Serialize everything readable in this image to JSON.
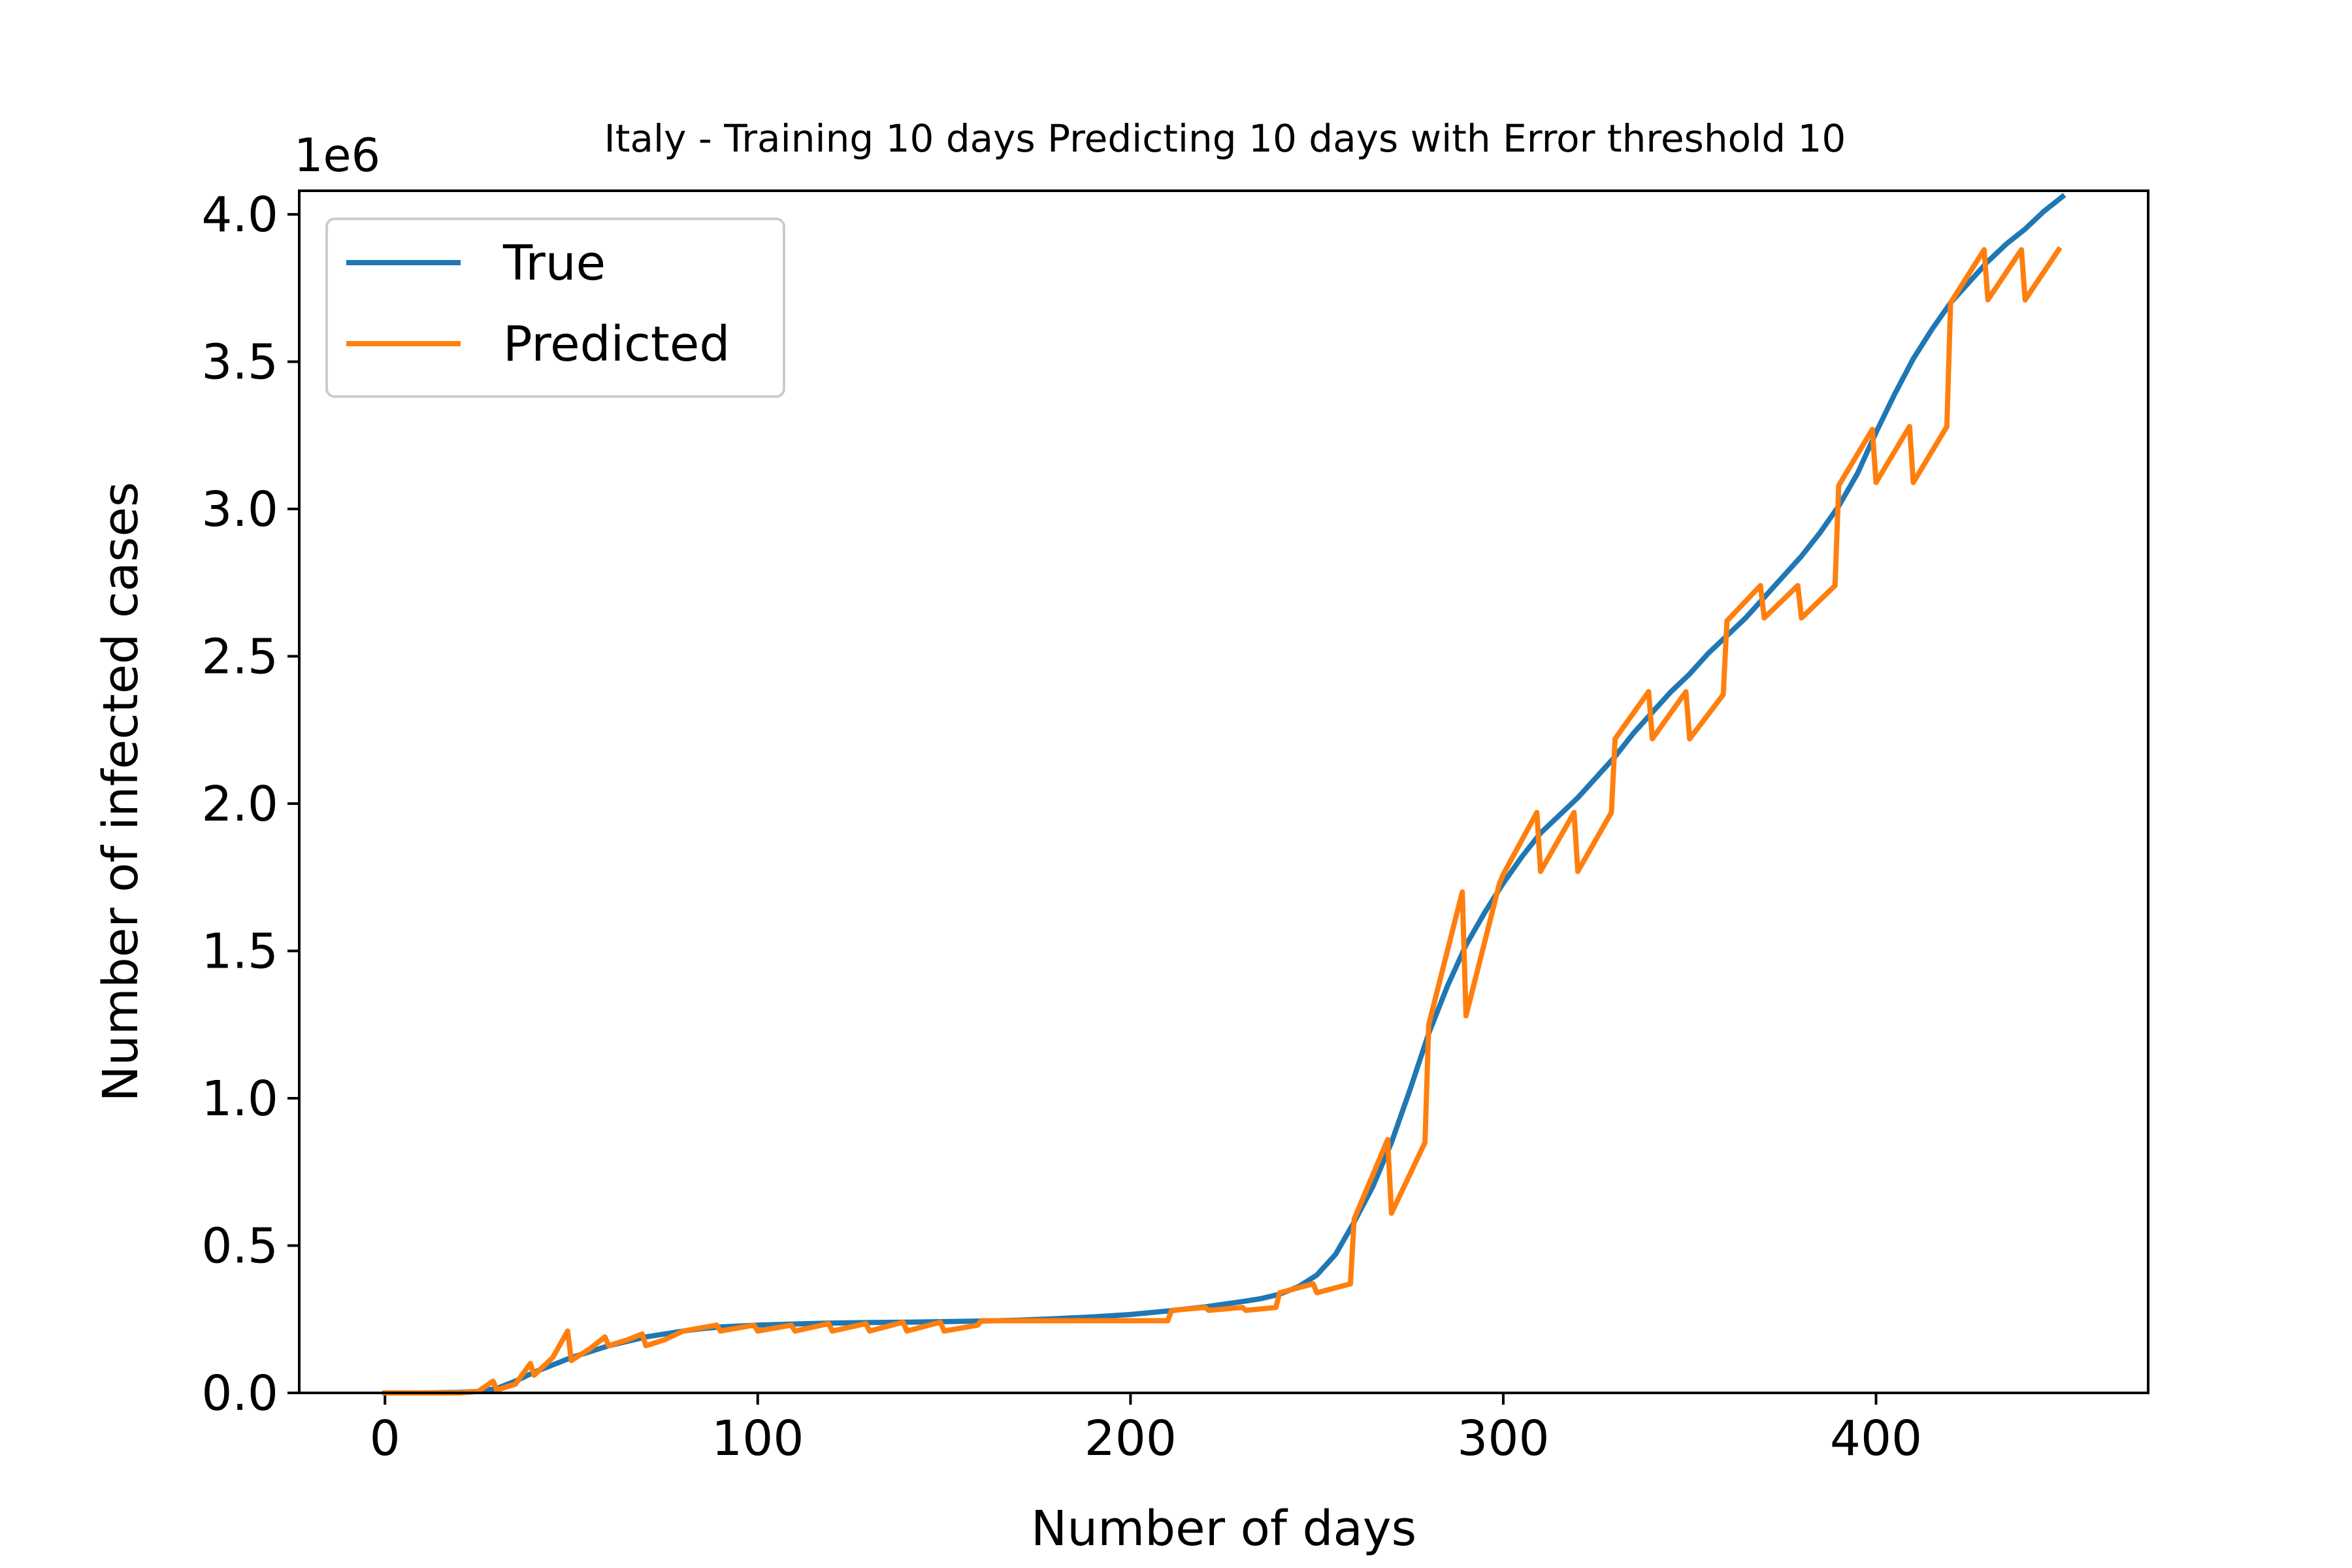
{
  "chart_data": {
    "type": "line",
    "title": "Italy - Training 10 days Predicting 10 days with Error threshold 10",
    "xlabel": "Number of days",
    "ylabel": "Number of infected cases",
    "y_multiplier_label": "1e6",
    "xlim": [
      -23,
      473
    ],
    "ylim": [
      0,
      4.08
    ],
    "x_ticks": [
      0,
      100,
      200,
      300,
      400
    ],
    "x_tick_labels": [
      "0",
      "100",
      "200",
      "300",
      "400"
    ],
    "y_ticks": [
      0,
      0.5,
      1.0,
      1.5,
      2.0,
      2.5,
      3.0,
      3.5,
      4.0
    ],
    "y_tick_labels": [
      "0.0",
      "0.5",
      "1.0",
      "1.5",
      "2.0",
      "2.5",
      "3.0",
      "3.5",
      "4.0"
    ],
    "legend_placement": "upper-left",
    "grid": false,
    "series": [
      {
        "name": "True",
        "color": "#1f77b4",
        "points": [
          [
            0,
            0
          ],
          [
            10,
            0
          ],
          [
            20,
            0.002
          ],
          [
            25,
            0.005
          ],
          [
            30,
            0.015
          ],
          [
            35,
            0.04
          ],
          [
            40,
            0.07
          ],
          [
            45,
            0.095
          ],
          [
            50,
            0.12
          ],
          [
            55,
            0.14
          ],
          [
            60,
            0.16
          ],
          [
            65,
            0.175
          ],
          [
            70,
            0.19
          ],
          [
            75,
            0.2
          ],
          [
            80,
            0.21
          ],
          [
            85,
            0.218
          ],
          [
            90,
            0.224
          ],
          [
            100,
            0.23
          ],
          [
            110,
            0.234
          ],
          [
            120,
            0.237
          ],
          [
            130,
            0.239
          ],
          [
            140,
            0.24
          ],
          [
            150,
            0.242
          ],
          [
            160,
            0.244
          ],
          [
            170,
            0.247
          ],
          [
            180,
            0.252
          ],
          [
            190,
            0.258
          ],
          [
            200,
            0.266
          ],
          [
            210,
            0.278
          ],
          [
            220,
            0.292
          ],
          [
            230,
            0.31
          ],
          [
            235,
            0.32
          ],
          [
            240,
            0.335
          ],
          [
            245,
            0.36
          ],
          [
            250,
            0.4
          ],
          [
            255,
            0.47
          ],
          [
            260,
            0.58
          ],
          [
            265,
            0.7
          ],
          [
            270,
            0.85
          ],
          [
            275,
            1.03
          ],
          [
            280,
            1.22
          ],
          [
            285,
            1.38
          ],
          [
            290,
            1.52
          ],
          [
            295,
            1.63
          ],
          [
            300,
            1.73
          ],
          [
            305,
            1.82
          ],
          [
            310,
            1.9
          ],
          [
            315,
            1.96
          ],
          [
            320,
            2.02
          ],
          [
            325,
            2.09
          ],
          [
            330,
            2.16
          ],
          [
            335,
            2.24
          ],
          [
            340,
            2.31
          ],
          [
            345,
            2.38
          ],
          [
            350,
            2.44
          ],
          [
            355,
            2.51
          ],
          [
            360,
            2.57
          ],
          [
            365,
            2.63
          ],
          [
            370,
            2.7
          ],
          [
            375,
            2.77
          ],
          [
            380,
            2.84
          ],
          [
            385,
            2.92
          ],
          [
            390,
            3.01
          ],
          [
            395,
            3.12
          ],
          [
            400,
            3.26
          ],
          [
            405,
            3.39
          ],
          [
            410,
            3.51
          ],
          [
            415,
            3.61
          ],
          [
            420,
            3.7
          ],
          [
            425,
            3.77
          ],
          [
            430,
            3.84
          ],
          [
            435,
            3.9
          ],
          [
            440,
            3.95
          ],
          [
            445,
            4.01
          ],
          [
            450,
            4.06
          ]
        ]
      },
      {
        "name": "Predicted",
        "color": "#ff7f0e",
        "points": [
          [
            0,
            0
          ],
          [
            20,
            0
          ],
          [
            25,
            0.005
          ],
          [
            29,
            0.04
          ],
          [
            30,
            0.01
          ],
          [
            35,
            0.03
          ],
          [
            39,
            0.1
          ],
          [
            40,
            0.06
          ],
          [
            45,
            0.12
          ],
          [
            49,
            0.21
          ],
          [
            50,
            0.11
          ],
          [
            55,
            0.15
          ],
          [
            59,
            0.19
          ],
          [
            60,
            0.16
          ],
          [
            65,
            0.18
          ],
          [
            69,
            0.2
          ],
          [
            70,
            0.16
          ],
          [
            75,
            0.18
          ],
          [
            80,
            0.21
          ],
          [
            89,
            0.23
          ],
          [
            90,
            0.21
          ],
          [
            99,
            0.23
          ],
          [
            100,
            0.21
          ],
          [
            109,
            0.23
          ],
          [
            110,
            0.21
          ],
          [
            119,
            0.235
          ],
          [
            120,
            0.21
          ],
          [
            129,
            0.235
          ],
          [
            130,
            0.21
          ],
          [
            139,
            0.24
          ],
          [
            140,
            0.21
          ],
          [
            149,
            0.24
          ],
          [
            150,
            0.21
          ],
          [
            159,
            0.23
          ],
          [
            160,
            0.245
          ],
          [
            210,
            0.245
          ],
          [
            211,
            0.28
          ],
          [
            220,
            0.29
          ],
          [
            221,
            0.28
          ],
          [
            230,
            0.29
          ],
          [
            231,
            0.28
          ],
          [
            239,
            0.29
          ],
          [
            240,
            0.34
          ],
          [
            249,
            0.37
          ],
          [
            250,
            0.34
          ],
          [
            259,
            0.37
          ],
          [
            260,
            0.59
          ],
          [
            269,
            0.86
          ],
          [
            270,
            0.61
          ],
          [
            279,
            0.85
          ],
          [
            280,
            1.25
          ],
          [
            289,
            1.7
          ],
          [
            290,
            1.28
          ],
          [
            299,
            1.73
          ],
          [
            300,
            1.76
          ],
          [
            309,
            1.97
          ],
          [
            310,
            1.77
          ],
          [
            319,
            1.97
          ],
          [
            320,
            1.77
          ],
          [
            329,
            1.97
          ],
          [
            330,
            2.22
          ],
          [
            339,
            2.38
          ],
          [
            340,
            2.22
          ],
          [
            349,
            2.38
          ],
          [
            350,
            2.22
          ],
          [
            359,
            2.37
          ],
          [
            360,
            2.62
          ],
          [
            369,
            2.74
          ],
          [
            370,
            2.63
          ],
          [
            379,
            2.74
          ],
          [
            380,
            2.63
          ],
          [
            389,
            2.74
          ],
          [
            390,
            3.08
          ],
          [
            399,
            3.27
          ],
          [
            400,
            3.09
          ],
          [
            409,
            3.28
          ],
          [
            410,
            3.09
          ],
          [
            419,
            3.28
          ],
          [
            420,
            3.7
          ],
          [
            429,
            3.88
          ],
          [
            430,
            3.71
          ],
          [
            439,
            3.88
          ],
          [
            440,
            3.71
          ],
          [
            449,
            3.88
          ]
        ]
      }
    ]
  }
}
